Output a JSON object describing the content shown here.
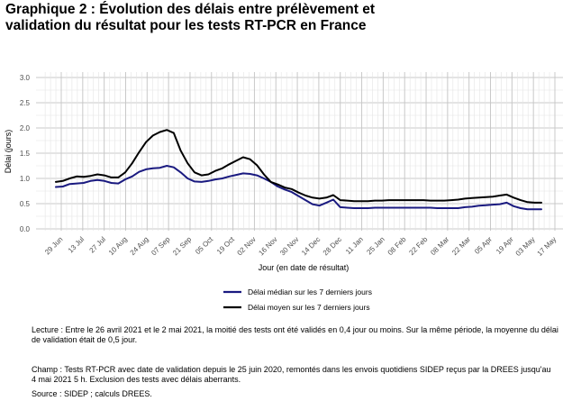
{
  "title_lines": [
    "Graphique 2 : Évolution des délais entre prélèvement et",
    "validation du résultat pour les tests RT-PCR en France"
  ],
  "notes": {
    "lecture": [
      "Lecture : Entre le 26 avril 2021 et le 2 mai 2021, la moitié des tests ont été validés en 0,4 jour ou moins. Sur la même période, la moyenne du délai",
      "de validation était de 0,5 jour."
    ],
    "champ": [
      "Champ : Tests RT-PCR avec date de validation depuis le 25 juin 2020, remontés dans les envois quotidiens SIDEP reçus par la DREES jusqu'au",
      "4 mai 2021 5 h. Exclusion des tests avec délais aberrants."
    ],
    "source": "Source : SIDEP ; calculs DREES."
  },
  "chart_data": {
    "type": "line",
    "xlabel": "Jour (en date de résultat)",
    "ylabel": "Délai (jours)",
    "ylim": [
      0,
      3.0
    ],
    "yticks": [
      "0.0",
      "0.5",
      "1.0",
      "1.5",
      "2.0",
      "2.5",
      "3.0"
    ],
    "xticks": [
      "29 Jun",
      "13 Jul",
      "27 Jul",
      "10 Aug",
      "24 Aug",
      "07 Sep",
      "21 Sep",
      "05 Oct",
      "19 Oct",
      "02 Nov",
      "16 Nov",
      "30 Nov",
      "14 Dec",
      "28 Dec",
      "11 Jan",
      "25 Jan",
      "08 Feb",
      "22 Feb",
      "08 Mar",
      "22 Mar",
      "05 Apr",
      "19 Apr",
      "03 May",
      "17 May"
    ],
    "grid": true,
    "legend_position": "bottom",
    "series": [
      {
        "name": "Délai médian sur les 7 derniers jours",
        "color": "#1a1a80",
        "values": [
          0.83,
          0.84,
          0.89,
          0.9,
          0.91,
          0.95,
          0.97,
          0.95,
          0.91,
          0.9,
          0.98,
          1.04,
          1.13,
          1.18,
          1.2,
          1.21,
          1.25,
          1.22,
          1.12,
          1.0,
          0.94,
          0.93,
          0.95,
          0.98,
          1.0,
          1.04,
          1.07,
          1.1,
          1.09,
          1.06,
          1.0,
          0.93,
          0.84,
          0.78,
          0.73,
          0.65,
          0.57,
          0.49,
          0.46,
          0.52,
          0.58,
          0.43,
          0.42,
          0.41,
          0.41,
          0.41,
          0.42,
          0.42,
          0.42,
          0.42,
          0.42,
          0.42,
          0.42,
          0.42,
          0.42,
          0.41,
          0.41,
          0.41,
          0.41,
          0.43,
          0.44,
          0.46,
          0.47,
          0.48,
          0.49,
          0.52,
          0.45,
          0.41,
          0.39,
          0.39,
          0.39
        ]
      },
      {
        "name": "Délai moyen sur les 7 derniers jours",
        "color": "#000000",
        "values": [
          0.93,
          0.95,
          1.0,
          1.04,
          1.03,
          1.05,
          1.08,
          1.06,
          1.02,
          1.02,
          1.12,
          1.3,
          1.52,
          1.72,
          1.85,
          1.92,
          1.96,
          1.9,
          1.55,
          1.3,
          1.12,
          1.06,
          1.08,
          1.15,
          1.2,
          1.28,
          1.35,
          1.42,
          1.38,
          1.26,
          1.08,
          0.93,
          0.88,
          0.82,
          0.79,
          0.72,
          0.66,
          0.62,
          0.6,
          0.62,
          0.67,
          0.57,
          0.56,
          0.55,
          0.55,
          0.55,
          0.56,
          0.56,
          0.57,
          0.57,
          0.57,
          0.57,
          0.57,
          0.57,
          0.56,
          0.56,
          0.56,
          0.57,
          0.58,
          0.6,
          0.61,
          0.62,
          0.63,
          0.64,
          0.66,
          0.68,
          0.62,
          0.57,
          0.53,
          0.52,
          0.52
        ]
      }
    ]
  }
}
